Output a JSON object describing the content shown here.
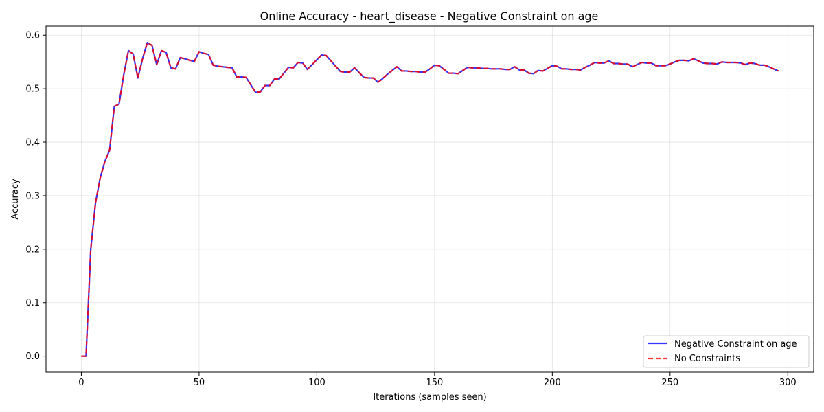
{
  "chart_data": {
    "type": "line",
    "title": "Online Accuracy - heart_disease - Negative Constraint on age",
    "xlabel": "Iterations (samples seen)",
    "ylabel": "Accuracy",
    "xlim": [
      -15,
      311
    ],
    "ylim": [
      -0.03,
      0.617
    ],
    "xticks": [
      0,
      50,
      100,
      150,
      200,
      250,
      300
    ],
    "yticks": [
      0.0,
      0.1,
      0.2,
      0.3,
      0.4,
      0.5,
      0.6
    ],
    "ytick_labels": [
      "0.0",
      "0.1",
      "0.2",
      "0.3",
      "0.4",
      "0.5",
      "0.6"
    ],
    "grid": true,
    "legend_position": "bottom-right",
    "series": [
      {
        "name": "Negative Constraint on age",
        "color": "#0000ff",
        "style": "solid",
        "points": [
          [
            0,
            0.0
          ],
          [
            2,
            0.0
          ],
          [
            4,
            0.2
          ],
          [
            6,
            0.286
          ],
          [
            8,
            0.333
          ],
          [
            10,
            0.364
          ],
          [
            12,
            0.385
          ],
          [
            14,
            0.467
          ],
          [
            16,
            0.471
          ],
          [
            18,
            0.526
          ],
          [
            20,
            0.571
          ],
          [
            22,
            0.565
          ],
          [
            24,
            0.52
          ],
          [
            26,
            0.556
          ],
          [
            28,
            0.586
          ],
          [
            30,
            0.581
          ],
          [
            32,
            0.545
          ],
          [
            34,
            0.571
          ],
          [
            36,
            0.568
          ],
          [
            38,
            0.539
          ],
          [
            40,
            0.537
          ],
          [
            42,
            0.558
          ],
          [
            44,
            0.556
          ],
          [
            46,
            0.553
          ],
          [
            48,
            0.551
          ],
          [
            50,
            0.569
          ],
          [
            52,
            0.566
          ],
          [
            54,
            0.564
          ],
          [
            56,
            0.544
          ],
          [
            58,
            0.542
          ],
          [
            60,
            0.541
          ],
          [
            62,
            0.54
          ],
          [
            64,
            0.539
          ],
          [
            66,
            0.522
          ],
          [
            68,
            0.522
          ],
          [
            70,
            0.521
          ],
          [
            72,
            0.507
          ],
          [
            74,
            0.493
          ],
          [
            76,
            0.494
          ],
          [
            78,
            0.506
          ],
          [
            80,
            0.506
          ],
          [
            82,
            0.518
          ],
          [
            84,
            0.518
          ],
          [
            86,
            0.529
          ],
          [
            88,
            0.54
          ],
          [
            90,
            0.539
          ],
          [
            92,
            0.549
          ],
          [
            94,
            0.548
          ],
          [
            96,
            0.536
          ],
          [
            98,
            0.545
          ],
          [
            100,
            0.554
          ],
          [
            102,
            0.563
          ],
          [
            104,
            0.562
          ],
          [
            106,
            0.552
          ],
          [
            108,
            0.542
          ],
          [
            110,
            0.532
          ],
          [
            112,
            0.531
          ],
          [
            114,
            0.531
          ],
          [
            116,
            0.539
          ],
          [
            118,
            0.53
          ],
          [
            120,
            0.521
          ],
          [
            122,
            0.52
          ],
          [
            124,
            0.52
          ],
          [
            126,
            0.512
          ],
          [
            128,
            0.519
          ],
          [
            130,
            0.527
          ],
          [
            132,
            0.534
          ],
          [
            134,
            0.541
          ],
          [
            136,
            0.533
          ],
          [
            138,
            0.533
          ],
          [
            140,
            0.532
          ],
          [
            142,
            0.532
          ],
          [
            144,
            0.531
          ],
          [
            146,
            0.531
          ],
          [
            148,
            0.537
          ],
          [
            150,
            0.544
          ],
          [
            152,
            0.543
          ],
          [
            154,
            0.536
          ],
          [
            156,
            0.529
          ],
          [
            158,
            0.529
          ],
          [
            160,
            0.528
          ],
          [
            162,
            0.534
          ],
          [
            164,
            0.54
          ],
          [
            166,
            0.539
          ],
          [
            168,
            0.539
          ],
          [
            170,
            0.538
          ],
          [
            172,
            0.538
          ],
          [
            174,
            0.537
          ],
          [
            176,
            0.537
          ],
          [
            178,
            0.537
          ],
          [
            180,
            0.536
          ],
          [
            182,
            0.536
          ],
          [
            184,
            0.541
          ],
          [
            186,
            0.535
          ],
          [
            188,
            0.535
          ],
          [
            190,
            0.529
          ],
          [
            192,
            0.528
          ],
          [
            194,
            0.534
          ],
          [
            196,
            0.533
          ],
          [
            198,
            0.538
          ],
          [
            200,
            0.543
          ],
          [
            202,
            0.542
          ],
          [
            204,
            0.537
          ],
          [
            206,
            0.537
          ],
          [
            208,
            0.536
          ],
          [
            210,
            0.536
          ],
          [
            212,
            0.535
          ],
          [
            214,
            0.54
          ],
          [
            216,
            0.544
          ],
          [
            218,
            0.549
          ],
          [
            220,
            0.548
          ],
          [
            222,
            0.548
          ],
          [
            224,
            0.552
          ],
          [
            226,
            0.547
          ],
          [
            228,
            0.547
          ],
          [
            230,
            0.546
          ],
          [
            232,
            0.546
          ],
          [
            234,
            0.541
          ],
          [
            236,
            0.545
          ],
          [
            238,
            0.549
          ],
          [
            240,
            0.548
          ],
          [
            242,
            0.548
          ],
          [
            244,
            0.543
          ],
          [
            246,
            0.543
          ],
          [
            248,
            0.543
          ],
          [
            250,
            0.546
          ],
          [
            252,
            0.55
          ],
          [
            254,
            0.553
          ],
          [
            256,
            0.553
          ],
          [
            258,
            0.552
          ],
          [
            260,
            0.556
          ],
          [
            262,
            0.552
          ],
          [
            264,
            0.548
          ],
          [
            266,
            0.547
          ],
          [
            268,
            0.547
          ],
          [
            270,
            0.546
          ],
          [
            272,
            0.55
          ],
          [
            274,
            0.549
          ],
          [
            276,
            0.549
          ],
          [
            278,
            0.549
          ],
          [
            280,
            0.548
          ],
          [
            282,
            0.545
          ],
          [
            284,
            0.548
          ],
          [
            286,
            0.547
          ],
          [
            288,
            0.544
          ],
          [
            290,
            0.544
          ],
          [
            292,
            0.541
          ],
          [
            294,
            0.537
          ],
          [
            296,
            0.533
          ]
        ]
      },
      {
        "name": "No Constraints",
        "color": "#ff0000",
        "style": "dashed",
        "points": [
          [
            0,
            0.0
          ],
          [
            2,
            0.0
          ],
          [
            4,
            0.2
          ],
          [
            6,
            0.286
          ],
          [
            8,
            0.333
          ],
          [
            10,
            0.364
          ],
          [
            12,
            0.385
          ],
          [
            14,
            0.467
          ],
          [
            16,
            0.471
          ],
          [
            18,
            0.526
          ],
          [
            20,
            0.571
          ],
          [
            22,
            0.565
          ],
          [
            24,
            0.52
          ],
          [
            26,
            0.556
          ],
          [
            28,
            0.586
          ],
          [
            30,
            0.581
          ],
          [
            32,
            0.545
          ],
          [
            34,
            0.571
          ],
          [
            36,
            0.568
          ],
          [
            38,
            0.539
          ],
          [
            40,
            0.537
          ],
          [
            42,
            0.558
          ],
          [
            44,
            0.556
          ],
          [
            46,
            0.553
          ],
          [
            48,
            0.551
          ],
          [
            50,
            0.569
          ],
          [
            52,
            0.566
          ],
          [
            54,
            0.564
          ],
          [
            56,
            0.544
          ],
          [
            58,
            0.542
          ],
          [
            60,
            0.541
          ],
          [
            62,
            0.54
          ],
          [
            64,
            0.539
          ],
          [
            66,
            0.522
          ],
          [
            68,
            0.522
          ],
          [
            70,
            0.521
          ],
          [
            72,
            0.507
          ],
          [
            74,
            0.493
          ],
          [
            76,
            0.494
          ],
          [
            78,
            0.506
          ],
          [
            80,
            0.506
          ],
          [
            82,
            0.518
          ],
          [
            84,
            0.518
          ],
          [
            86,
            0.529
          ],
          [
            88,
            0.54
          ],
          [
            90,
            0.539
          ],
          [
            92,
            0.549
          ],
          [
            94,
            0.548
          ],
          [
            96,
            0.536
          ],
          [
            98,
            0.545
          ],
          [
            100,
            0.554
          ],
          [
            102,
            0.563
          ],
          [
            104,
            0.562
          ],
          [
            106,
            0.552
          ],
          [
            108,
            0.542
          ],
          [
            110,
            0.532
          ],
          [
            112,
            0.531
          ],
          [
            114,
            0.531
          ],
          [
            116,
            0.539
          ],
          [
            118,
            0.53
          ],
          [
            120,
            0.521
          ],
          [
            122,
            0.52
          ],
          [
            124,
            0.52
          ],
          [
            126,
            0.512
          ],
          [
            128,
            0.519
          ],
          [
            130,
            0.527
          ],
          [
            132,
            0.534
          ],
          [
            134,
            0.541
          ],
          [
            136,
            0.533
          ],
          [
            138,
            0.533
          ],
          [
            140,
            0.532
          ],
          [
            142,
            0.532
          ],
          [
            144,
            0.531
          ],
          [
            146,
            0.531
          ],
          [
            148,
            0.537
          ],
          [
            150,
            0.544
          ],
          [
            152,
            0.543
          ],
          [
            154,
            0.536
          ],
          [
            156,
            0.529
          ],
          [
            158,
            0.529
          ],
          [
            160,
            0.528
          ],
          [
            162,
            0.534
          ],
          [
            164,
            0.54
          ],
          [
            166,
            0.539
          ],
          [
            168,
            0.539
          ],
          [
            170,
            0.538
          ],
          [
            172,
            0.538
          ],
          [
            174,
            0.537
          ],
          [
            176,
            0.537
          ],
          [
            178,
            0.537
          ],
          [
            180,
            0.536
          ],
          [
            182,
            0.536
          ],
          [
            184,
            0.541
          ],
          [
            186,
            0.535
          ],
          [
            188,
            0.535
          ],
          [
            190,
            0.529
          ],
          [
            192,
            0.528
          ],
          [
            194,
            0.534
          ],
          [
            196,
            0.533
          ],
          [
            198,
            0.538
          ],
          [
            200,
            0.543
          ],
          [
            202,
            0.542
          ],
          [
            204,
            0.537
          ],
          [
            206,
            0.537
          ],
          [
            208,
            0.536
          ],
          [
            210,
            0.536
          ],
          [
            212,
            0.535
          ],
          [
            214,
            0.54
          ],
          [
            216,
            0.544
          ],
          [
            218,
            0.549
          ],
          [
            220,
            0.548
          ],
          [
            222,
            0.548
          ],
          [
            224,
            0.552
          ],
          [
            226,
            0.547
          ],
          [
            228,
            0.547
          ],
          [
            230,
            0.546
          ],
          [
            232,
            0.546
          ],
          [
            234,
            0.541
          ],
          [
            236,
            0.545
          ],
          [
            238,
            0.549
          ],
          [
            240,
            0.548
          ],
          [
            242,
            0.548
          ],
          [
            244,
            0.543
          ],
          [
            246,
            0.543
          ],
          [
            248,
            0.543
          ],
          [
            250,
            0.546
          ],
          [
            252,
            0.55
          ],
          [
            254,
            0.553
          ],
          [
            256,
            0.553
          ],
          [
            258,
            0.552
          ],
          [
            260,
            0.556
          ],
          [
            262,
            0.552
          ],
          [
            264,
            0.548
          ],
          [
            266,
            0.547
          ],
          [
            268,
            0.547
          ],
          [
            270,
            0.546
          ],
          [
            272,
            0.55
          ],
          [
            274,
            0.549
          ],
          [
            276,
            0.549
          ],
          [
            278,
            0.549
          ],
          [
            280,
            0.548
          ],
          [
            282,
            0.545
          ],
          [
            284,
            0.548
          ],
          [
            286,
            0.547
          ],
          [
            288,
            0.544
          ],
          [
            290,
            0.544
          ],
          [
            292,
            0.541
          ],
          [
            294,
            0.537
          ],
          [
            296,
            0.533
          ]
        ]
      }
    ]
  }
}
